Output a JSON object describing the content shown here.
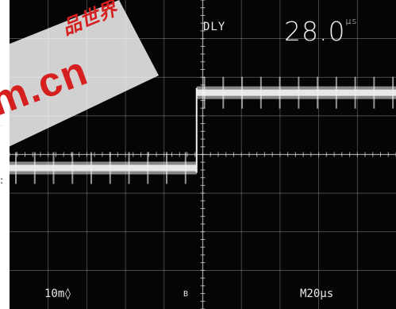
{
  "readouts": {
    "delay_label": "DLY",
    "delay_value": "28.0",
    "delay_unit": "µs",
    "channel_scale": "10m◊",
    "trigger_source": "B",
    "timebase": "M20µs"
  },
  "watermark": {
    "domain_text": "m.cn",
    "cjk_text": "品世界"
  },
  "colors": {
    "screen": "#050505",
    "graticule": "#cfcfcf",
    "trace": "#f2f2f2",
    "watermark": "#d62020"
  },
  "trace": {
    "low_level_div": -0.35,
    "high_level_div": 1.6,
    "step_time_div": 4.8,
    "ringing": true
  }
}
